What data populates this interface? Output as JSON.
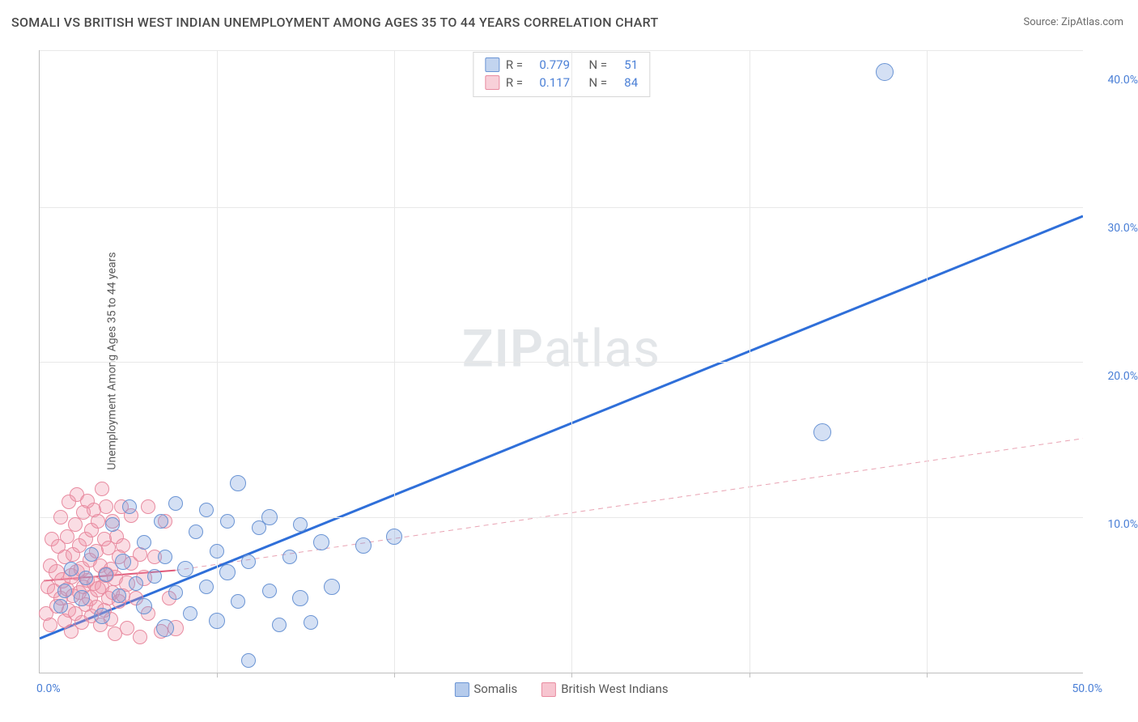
{
  "title": "SOMALI VS BRITISH WEST INDIAN UNEMPLOYMENT AMONG AGES 35 TO 44 YEARS CORRELATION CHART",
  "source_prefix": "Source: ",
  "source_name": "ZipAtlas.com",
  "y_axis_label": "Unemployment Among Ages 35 to 44 years",
  "watermark_a": "ZIP",
  "watermark_b": "atlas",
  "chart": {
    "type": "scatter",
    "xlim": [
      0,
      50
    ],
    "ylim": [
      0,
      42
    ],
    "x_ticks": [
      0,
      50
    ],
    "x_tick_labels": [
      "0.0%",
      "50.0%"
    ],
    "x_minor_ticks": [
      8.5,
      17,
      25.5,
      34,
      42.5
    ],
    "y_ticks": [
      10,
      20,
      30,
      40
    ],
    "y_tick_labels": [
      "10.0%",
      "20.0%",
      "30.0%",
      "40.0%"
    ],
    "y_gridlines": [
      10.5,
      21,
      31.4,
      42
    ],
    "background_color": "#ffffff",
    "grid_color": "#e8e8e8",
    "axis_color": "#bfbfbf",
    "tick_label_color": "#4a7fd6",
    "title_color": "#4a4a4a",
    "title_fontsize": 16,
    "label_fontsize": 14,
    "marker_radius_base": 9,
    "series": [
      {
        "name": "Somalis",
        "color_fill": "rgba(120,160,220,0.32)",
        "color_stroke": "#6a94d4",
        "R": "0.779",
        "N": "51",
        "trend": {
          "x1": 0,
          "y1": 2.3,
          "x2": 50,
          "y2": 30.8,
          "stroke": "#2f6fd9",
          "width": 3,
          "dash": "none"
        },
        "points": [
          {
            "x": 1.0,
            "y": 4.5,
            "r": 9
          },
          {
            "x": 1.2,
            "y": 5.5,
            "r": 9
          },
          {
            "x": 1.5,
            "y": 7.0,
            "r": 9
          },
          {
            "x": 2.0,
            "y": 5.0,
            "r": 10
          },
          {
            "x": 2.2,
            "y": 6.4,
            "r": 9
          },
          {
            "x": 2.5,
            "y": 8.0,
            "r": 9
          },
          {
            "x": 3.0,
            "y": 3.8,
            "r": 10
          },
          {
            "x": 3.2,
            "y": 6.6,
            "r": 9
          },
          {
            "x": 3.5,
            "y": 10.0,
            "r": 9
          },
          {
            "x": 3.8,
            "y": 5.2,
            "r": 9
          },
          {
            "x": 4.0,
            "y": 7.5,
            "r": 10
          },
          {
            "x": 4.3,
            "y": 11.2,
            "r": 9
          },
          {
            "x": 4.6,
            "y": 6.0,
            "r": 9
          },
          {
            "x": 5.0,
            "y": 4.5,
            "r": 10
          },
          {
            "x": 5.0,
            "y": 8.8,
            "r": 9
          },
          {
            "x": 5.5,
            "y": 6.5,
            "r": 9
          },
          {
            "x": 5.8,
            "y": 10.2,
            "r": 9
          },
          {
            "x": 6.0,
            "y": 3.0,
            "r": 11
          },
          {
            "x": 6.0,
            "y": 7.8,
            "r": 9
          },
          {
            "x": 6.5,
            "y": 5.4,
            "r": 9
          },
          {
            "x": 6.5,
            "y": 11.4,
            "r": 9
          },
          {
            "x": 7.0,
            "y": 7.0,
            "r": 10
          },
          {
            "x": 7.2,
            "y": 4.0,
            "r": 9
          },
          {
            "x": 7.5,
            "y": 9.5,
            "r": 9
          },
          {
            "x": 8.0,
            "y": 5.8,
            "r": 9
          },
          {
            "x": 8.0,
            "y": 11.0,
            "r": 9
          },
          {
            "x": 8.5,
            "y": 8.2,
            "r": 9
          },
          {
            "x": 8.5,
            "y": 3.5,
            "r": 10
          },
          {
            "x": 9.0,
            "y": 6.8,
            "r": 10
          },
          {
            "x": 9.0,
            "y": 10.2,
            "r": 9
          },
          {
            "x": 9.5,
            "y": 4.8,
            "r": 9
          },
          {
            "x": 9.5,
            "y": 12.8,
            "r": 10
          },
          {
            "x": 10.0,
            "y": 0.8,
            "r": 9
          },
          {
            "x": 10.0,
            "y": 7.5,
            "r": 9
          },
          {
            "x": 10.5,
            "y": 9.8,
            "r": 9
          },
          {
            "x": 11.0,
            "y": 5.5,
            "r": 9
          },
          {
            "x": 11.0,
            "y": 10.5,
            "r": 10
          },
          {
            "x": 11.5,
            "y": 3.2,
            "r": 9
          },
          {
            "x": 12.0,
            "y": 7.8,
            "r": 9
          },
          {
            "x": 12.5,
            "y": 10.0,
            "r": 9
          },
          {
            "x": 12.5,
            "y": 5.0,
            "r": 10
          },
          {
            "x": 13.0,
            "y": 3.4,
            "r": 9
          },
          {
            "x": 13.5,
            "y": 8.8,
            "r": 10
          },
          {
            "x": 14.0,
            "y": 5.8,
            "r": 10
          },
          {
            "x": 15.5,
            "y": 8.6,
            "r": 10
          },
          {
            "x": 17.0,
            "y": 9.2,
            "r": 10
          },
          {
            "x": 37.5,
            "y": 16.2,
            "r": 11
          },
          {
            "x": 40.5,
            "y": 40.5,
            "r": 11
          }
        ]
      },
      {
        "name": "British West Indians",
        "color_fill": "rgba(240,150,170,0.32)",
        "color_stroke": "#e88ba0",
        "R": "0.117",
        "N": "84",
        "trend_solid": {
          "x1": 0.2,
          "y1": 6.2,
          "x2": 6.5,
          "y2": 6.9,
          "stroke": "#e05a7a",
          "width": 2,
          "dash": "none"
        },
        "trend_dashed": {
          "x1": 6.5,
          "y1": 6.9,
          "x2": 50,
          "y2": 15.8,
          "stroke": "#e9a3b3",
          "width": 1,
          "dash": "6,5"
        },
        "points": [
          {
            "x": 0.3,
            "y": 4.0,
            "r": 9
          },
          {
            "x": 0.4,
            "y": 5.8,
            "r": 9
          },
          {
            "x": 0.5,
            "y": 7.2,
            "r": 9
          },
          {
            "x": 0.5,
            "y": 3.2,
            "r": 9
          },
          {
            "x": 0.6,
            "y": 9.0,
            "r": 9
          },
          {
            "x": 0.7,
            "y": 5.5,
            "r": 9
          },
          {
            "x": 0.8,
            "y": 6.8,
            "r": 10
          },
          {
            "x": 0.8,
            "y": 4.5,
            "r": 9
          },
          {
            "x": 0.9,
            "y": 8.5,
            "r": 9
          },
          {
            "x": 1.0,
            "y": 5.0,
            "r": 9
          },
          {
            "x": 1.0,
            "y": 10.5,
            "r": 9
          },
          {
            "x": 1.1,
            "y": 6.2,
            "r": 10
          },
          {
            "x": 1.2,
            "y": 3.5,
            "r": 9
          },
          {
            "x": 1.2,
            "y": 7.8,
            "r": 9
          },
          {
            "x": 1.3,
            "y": 5.6,
            "r": 9
          },
          {
            "x": 1.3,
            "y": 9.2,
            "r": 9
          },
          {
            "x": 1.4,
            "y": 4.2,
            "r": 9
          },
          {
            "x": 1.4,
            "y": 11.5,
            "r": 9
          },
          {
            "x": 1.5,
            "y": 6.5,
            "r": 10
          },
          {
            "x": 1.5,
            "y": 2.8,
            "r": 9
          },
          {
            "x": 1.6,
            "y": 8.0,
            "r": 9
          },
          {
            "x": 1.6,
            "y": 5.2,
            "r": 9
          },
          {
            "x": 1.7,
            "y": 10.0,
            "r": 9
          },
          {
            "x": 1.7,
            "y": 4.0,
            "r": 9
          },
          {
            "x": 1.8,
            "y": 6.8,
            "r": 10
          },
          {
            "x": 1.8,
            "y": 12.0,
            "r": 9
          },
          {
            "x": 1.9,
            "y": 5.4,
            "r": 9
          },
          {
            "x": 1.9,
            "y": 8.6,
            "r": 9
          },
          {
            "x": 2.0,
            "y": 3.4,
            "r": 9
          },
          {
            "x": 2.0,
            "y": 7.0,
            "r": 10
          },
          {
            "x": 2.1,
            "y": 10.8,
            "r": 9
          },
          {
            "x": 2.1,
            "y": 5.8,
            "r": 9
          },
          {
            "x": 2.2,
            "y": 4.6,
            "r": 9
          },
          {
            "x": 2.2,
            "y": 9.0,
            "r": 9
          },
          {
            "x": 2.3,
            "y": 6.2,
            "r": 9
          },
          {
            "x": 2.3,
            "y": 11.6,
            "r": 9
          },
          {
            "x": 2.4,
            "y": 5.0,
            "r": 10
          },
          {
            "x": 2.4,
            "y": 7.6,
            "r": 9
          },
          {
            "x": 2.5,
            "y": 3.8,
            "r": 9
          },
          {
            "x": 2.5,
            "y": 9.6,
            "r": 9
          },
          {
            "x": 2.6,
            "y": 6.0,
            "r": 9
          },
          {
            "x": 2.6,
            "y": 11.0,
            "r": 9
          },
          {
            "x": 2.7,
            "y": 4.4,
            "r": 9
          },
          {
            "x": 2.7,
            "y": 8.2,
            "r": 9
          },
          {
            "x": 2.8,
            "y": 5.6,
            "r": 10
          },
          {
            "x": 2.8,
            "y": 10.2,
            "r": 9
          },
          {
            "x": 2.9,
            "y": 3.2,
            "r": 9
          },
          {
            "x": 2.9,
            "y": 7.2,
            "r": 9
          },
          {
            "x": 3.0,
            "y": 12.4,
            "r": 9
          },
          {
            "x": 3.0,
            "y": 5.8,
            "r": 9
          },
          {
            "x": 3.1,
            "y": 9.0,
            "r": 9
          },
          {
            "x": 3.1,
            "y": 4.2,
            "r": 9
          },
          {
            "x": 3.2,
            "y": 6.6,
            "r": 10
          },
          {
            "x": 3.2,
            "y": 11.2,
            "r": 9
          },
          {
            "x": 3.3,
            "y": 5.0,
            "r": 9
          },
          {
            "x": 3.3,
            "y": 8.4,
            "r": 9
          },
          {
            "x": 3.4,
            "y": 3.6,
            "r": 9
          },
          {
            "x": 3.4,
            "y": 7.0,
            "r": 9
          },
          {
            "x": 3.5,
            "y": 10.2,
            "r": 9
          },
          {
            "x": 3.5,
            "y": 5.4,
            "r": 9
          },
          {
            "x": 3.6,
            "y": 6.4,
            "r": 10
          },
          {
            "x": 3.6,
            "y": 2.6,
            "r": 9
          },
          {
            "x": 3.7,
            "y": 9.2,
            "r": 9
          },
          {
            "x": 3.8,
            "y": 4.8,
            "r": 9
          },
          {
            "x": 3.8,
            "y": 7.8,
            "r": 9
          },
          {
            "x": 3.9,
            "y": 11.2,
            "r": 9
          },
          {
            "x": 4.0,
            "y": 5.2,
            "r": 9
          },
          {
            "x": 4.0,
            "y": 8.6,
            "r": 9
          },
          {
            "x": 4.2,
            "y": 6.0,
            "r": 10
          },
          {
            "x": 4.2,
            "y": 3.0,
            "r": 9
          },
          {
            "x": 4.4,
            "y": 7.4,
            "r": 9
          },
          {
            "x": 4.4,
            "y": 10.6,
            "r": 9
          },
          {
            "x": 4.6,
            "y": 5.0,
            "r": 9
          },
          {
            "x": 4.8,
            "y": 8.0,
            "r": 9
          },
          {
            "x": 4.8,
            "y": 2.4,
            "r": 9
          },
          {
            "x": 5.0,
            "y": 6.4,
            "r": 10
          },
          {
            "x": 5.2,
            "y": 11.2,
            "r": 9
          },
          {
            "x": 5.2,
            "y": 4.0,
            "r": 9
          },
          {
            "x": 5.5,
            "y": 7.8,
            "r": 9
          },
          {
            "x": 5.8,
            "y": 2.8,
            "r": 9
          },
          {
            "x": 6.0,
            "y": 10.2,
            "r": 9
          },
          {
            "x": 6.2,
            "y": 5.0,
            "r": 9
          },
          {
            "x": 6.5,
            "y": 3.0,
            "r": 10
          }
        ]
      }
    ],
    "legend_top": {
      "r_label": "R =",
      "n_label": "N ="
    },
    "legend_bottom": {
      "series1_label": "Somalis",
      "series2_label": "British West Indians"
    }
  }
}
